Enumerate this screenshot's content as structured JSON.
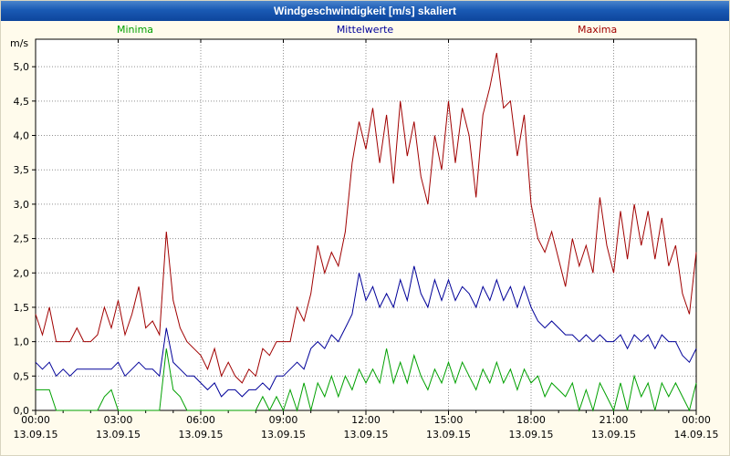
{
  "title_bar": {
    "title": "Windgeschwindigkeit [m/s] skaliert"
  },
  "legend": [
    {
      "label": "Minima",
      "color": "#00a000"
    },
    {
      "label": "Mittelwerte",
      "color": "#000099"
    },
    {
      "label": "Maxima",
      "color": "#a00000"
    }
  ],
  "colors": {
    "window_background": "#fffbec",
    "plot_background": "#ffffff",
    "title_bar_blue": "#1a5ab4",
    "grid": "#909090",
    "axis": "#000000"
  },
  "chart_data": {
    "type": "line",
    "title": "Windgeschwindigkeit [m/s] skaliert",
    "xlabel": "",
    "ylabel": "m/s",
    "ylim": [
      0,
      5.4
    ],
    "ytick_step": 0.5,
    "ytick_labels": [
      "0,0",
      "0,5",
      "1,0",
      "1,5",
      "2,0",
      "2,5",
      "3,0",
      "3,5",
      "4,0",
      "4,5",
      "5,0"
    ],
    "x_range_hours": [
      0,
      24
    ],
    "sample_interval_minutes": 15,
    "grid": true,
    "legend_position": "top",
    "xtick_times": [
      "00:00",
      "03:00",
      "06:00",
      "09:00",
      "12:00",
      "15:00",
      "18:00",
      "21:00",
      "00:00"
    ],
    "xtick_dates": [
      "13.09.15",
      "13.09.15",
      "13.09.15",
      "13.09.15",
      "13.09.15",
      "13.09.15",
      "13.09.15",
      "13.09.15",
      "14.09.15"
    ],
    "series": [
      {
        "name": "Minima",
        "color": "#00a000",
        "values": [
          0.3,
          0.3,
          0.3,
          0.0,
          0.0,
          0.0,
          0.0,
          0.0,
          0.0,
          0.0,
          0.2,
          0.3,
          0.0,
          0.0,
          0.0,
          0.0,
          0.0,
          0.0,
          0.0,
          0.9,
          0.3,
          0.2,
          0.0,
          0.0,
          0.0,
          0.0,
          0.0,
          0.0,
          0.0,
          0.0,
          0.0,
          0.0,
          0.0,
          0.2,
          0.0,
          0.2,
          0.0,
          0.3,
          0.0,
          0.4,
          0.0,
          0.4,
          0.2,
          0.5,
          0.2,
          0.5,
          0.3,
          0.6,
          0.4,
          0.6,
          0.4,
          0.9,
          0.4,
          0.7,
          0.4,
          0.8,
          0.5,
          0.3,
          0.6,
          0.4,
          0.7,
          0.4,
          0.7,
          0.5,
          0.3,
          0.6,
          0.4,
          0.7,
          0.4,
          0.6,
          0.3,
          0.6,
          0.4,
          0.5,
          0.2,
          0.4,
          0.3,
          0.2,
          0.4,
          0.0,
          0.3,
          0.0,
          0.4,
          0.2,
          0.0,
          0.4,
          0.0,
          0.5,
          0.2,
          0.4,
          0.0,
          0.4,
          0.2,
          0.4,
          0.2,
          0.0,
          0.4
        ]
      },
      {
        "name": "Mittelwerte",
        "color": "#000099",
        "values": [
          0.7,
          0.6,
          0.7,
          0.5,
          0.6,
          0.5,
          0.6,
          0.6,
          0.6,
          0.6,
          0.6,
          0.6,
          0.7,
          0.5,
          0.6,
          0.7,
          0.6,
          0.6,
          0.5,
          1.2,
          0.7,
          0.6,
          0.5,
          0.5,
          0.4,
          0.3,
          0.4,
          0.2,
          0.3,
          0.3,
          0.2,
          0.3,
          0.3,
          0.4,
          0.3,
          0.5,
          0.5,
          0.6,
          0.7,
          0.6,
          0.9,
          1.0,
          0.9,
          1.1,
          1.0,
          1.2,
          1.4,
          2.0,
          1.6,
          1.8,
          1.5,
          1.7,
          1.5,
          1.9,
          1.6,
          2.1,
          1.7,
          1.5,
          1.9,
          1.6,
          1.9,
          1.6,
          1.8,
          1.7,
          1.5,
          1.8,
          1.6,
          1.9,
          1.6,
          1.8,
          1.5,
          1.8,
          1.5,
          1.3,
          1.2,
          1.3,
          1.2,
          1.1,
          1.1,
          1.0,
          1.1,
          1.0,
          1.1,
          1.0,
          1.0,
          1.1,
          0.9,
          1.1,
          1.0,
          1.1,
          0.9,
          1.1,
          1.0,
          1.0,
          0.8,
          0.7,
          0.9
        ]
      },
      {
        "name": "Maxima",
        "color": "#a00000",
        "values": [
          1.4,
          1.1,
          1.5,
          1.0,
          1.0,
          1.0,
          1.2,
          1.0,
          1.0,
          1.1,
          1.5,
          1.2,
          1.6,
          1.1,
          1.4,
          1.8,
          1.2,
          1.3,
          1.1,
          2.6,
          1.6,
          1.2,
          1.0,
          0.9,
          0.8,
          0.6,
          0.9,
          0.5,
          0.7,
          0.5,
          0.4,
          0.6,
          0.5,
          0.9,
          0.8,
          1.0,
          1.0,
          1.0,
          1.5,
          1.3,
          1.7,
          2.4,
          2.0,
          2.3,
          2.1,
          2.6,
          3.6,
          4.2,
          3.8,
          4.4,
          3.6,
          4.3,
          3.3,
          4.5,
          3.7,
          4.2,
          3.4,
          3.0,
          4.0,
          3.5,
          4.5,
          3.6,
          4.4,
          4.0,
          3.1,
          4.3,
          4.7,
          5.2,
          4.4,
          4.5,
          3.7,
          4.3,
          3.0,
          2.5,
          2.3,
          2.6,
          2.2,
          1.8,
          2.5,
          2.1,
          2.4,
          2.0,
          3.1,
          2.4,
          2.0,
          2.9,
          2.2,
          3.0,
          2.4,
          2.9,
          2.2,
          2.8,
          2.1,
          2.4,
          1.7,
          1.4,
          2.3
        ]
      }
    ]
  }
}
